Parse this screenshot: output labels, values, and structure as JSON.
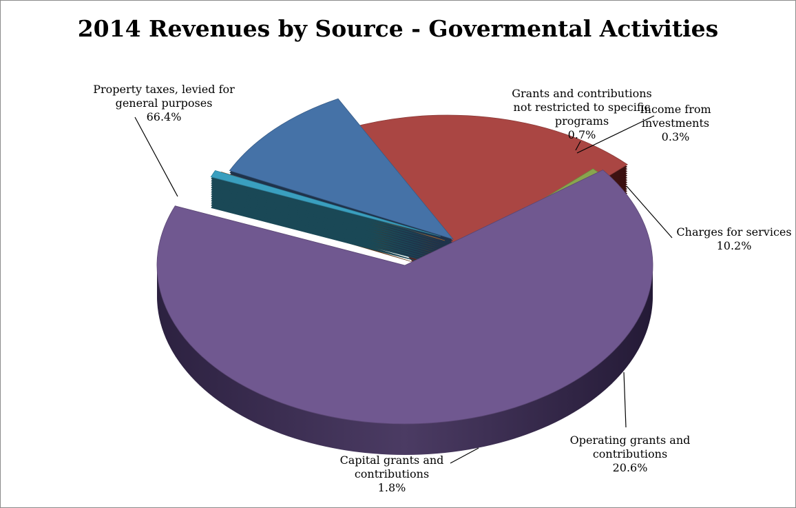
{
  "chart_data": {
    "type": "pie",
    "title": "2014 Revenues by Source - Govermental Activities",
    "slices": [
      {
        "key": "property",
        "lines": [
          "Property taxes, levied for",
          "general purposes"
        ],
        "value": 66.4,
        "pct_label": "66.4%",
        "color": "#705890"
      },
      {
        "key": "grants_unrestricted",
        "lines": [
          "Grants and contributions",
          "not restricted to specific",
          "programs"
        ],
        "value": 0.7,
        "pct_label": "0.7%",
        "color": "#3a9fbf"
      },
      {
        "key": "investments",
        "lines": [
          "Income from",
          "investments"
        ],
        "value": 0.3,
        "pct_label": "0.3%",
        "color": "#d47a33"
      },
      {
        "key": "charges",
        "lines": [
          "Charges for services"
        ],
        "value": 10.2,
        "pct_label": "10.2%",
        "color": "#4572a7"
      },
      {
        "key": "operating",
        "lines": [
          "Operating grants and",
          "contributions"
        ],
        "value": 20.6,
        "pct_label": "20.6%",
        "color": "#aa4643"
      },
      {
        "key": "capital",
        "lines": [
          "Capital grants and",
          "contributions"
        ],
        "value": 1.8,
        "pct_label": "1.8%",
        "color": "#89a54e"
      }
    ]
  }
}
